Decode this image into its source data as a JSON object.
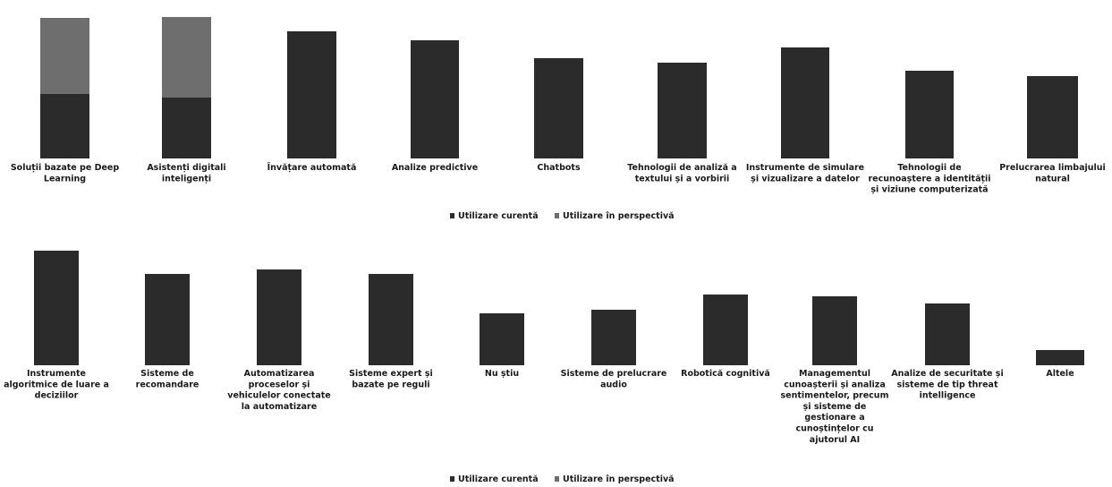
{
  "chart_data": [
    {
      "type": "bar",
      "stacked": true,
      "categories": [
        "Soluții bazate pe Deep Learning",
        "Asistenți digitali inteligenți",
        "Învățare automată",
        "Analize predictive",
        "Chatbots",
        "Tehnologii de analiză a textului și a vorbirii",
        "Instrumente de simulare și vizualizare a datelor",
        "Tehnologii de recunoaștere a identității și viziune computerizată",
        "Prelucrarea limbajului natural"
      ],
      "series": [
        {
          "name": "Utilizare curentă",
          "values": [
            72,
            68,
            142,
            132,
            112,
            107,
            124,
            98,
            92
          ]
        },
        {
          "name": "Utilizare în perspectivă",
          "values": [
            85,
            90,
            0,
            0,
            0,
            0,
            0,
            0,
            0
          ]
        }
      ],
      "legend_position": "bottom",
      "grid": false,
      "axes_visible": false
    },
    {
      "type": "bar",
      "stacked": true,
      "categories": [
        "Instrumente algoritmice de luare a deciziilor",
        "Sisteme de recomandare",
        "Automatizarea proceselor și vehiculelor conectate la automatizare",
        "Sisteme expert și bazate pe reguli",
        "Nu știu",
        "Sisteme de prelucrare audio",
        "Robotică cognitivă",
        "Managementul cunoașterii și analiza sentimentelor, precum și sisteme de gestionare a cunoștințelor cu ajutorul AI",
        "Analize de securitate și sisteme de tip threat intelligence",
        "Altele"
      ],
      "series": [
        {
          "name": "Utilizare curentă",
          "values": [
            128,
            102,
            107,
            102,
            58,
            62,
            79,
            77,
            69,
            17
          ]
        },
        {
          "name": "Utilizare în perspectivă",
          "values": [
            0,
            0,
            0,
            0,
            0,
            0,
            0,
            0,
            0,
            0
          ]
        }
      ],
      "legend_position": "bottom",
      "grid": false,
      "axes_visible": false
    }
  ],
  "colors": {
    "current": "#2b2b2b",
    "perspective": "#6e6e6e",
    "text": "#1a1a1a",
    "background": "#ffffff"
  },
  "labels_top": [
    [
      "Soluții bazate pe Deep",
      "Learning"
    ],
    [
      "Asistenți digitali",
      "inteligenți"
    ],
    [
      "Învățare automată"
    ],
    [
      "Analize predictive"
    ],
    [
      "Chatbots"
    ],
    [
      "Tehnologii de analiză a",
      "textului și a vorbirii"
    ],
    [
      "Instrumente de simulare",
      "și vizualizare a datelor"
    ],
    [
      "Tehnologii de",
      "recunoaștere a identității",
      "și viziune computerizată"
    ],
    [
      "Prelucrarea limbajului",
      "natural"
    ]
  ],
  "labels_bottom": [
    [
      "Instrumente",
      "algoritmice de luare a",
      "deciziilor"
    ],
    [
      "Sisteme de",
      "recomandare"
    ],
    [
      "Automatizarea",
      "proceselor și",
      "vehiculelor conectate",
      "la automatizare"
    ],
    [
      "Sisteme expert și",
      "bazate pe reguli"
    ],
    [
      "Nu știu"
    ],
    [
      "Sisteme de prelucrare",
      "audio"
    ],
    [
      "Robotică cognitivă"
    ],
    [
      "Managementul",
      "cunoașterii și analiza",
      "sentimentelor, precum",
      "și sisteme de",
      "gestionare a",
      "cunoștințelor cu",
      "ajutorul AI"
    ],
    [
      "Analize de securitate și",
      "sisteme de tip threat",
      "intelligence"
    ],
    [
      "Altele"
    ]
  ],
  "legend": {
    "current_label": "Utilizare curentă",
    "perspective_label": "Utilizare în perspectivă"
  }
}
